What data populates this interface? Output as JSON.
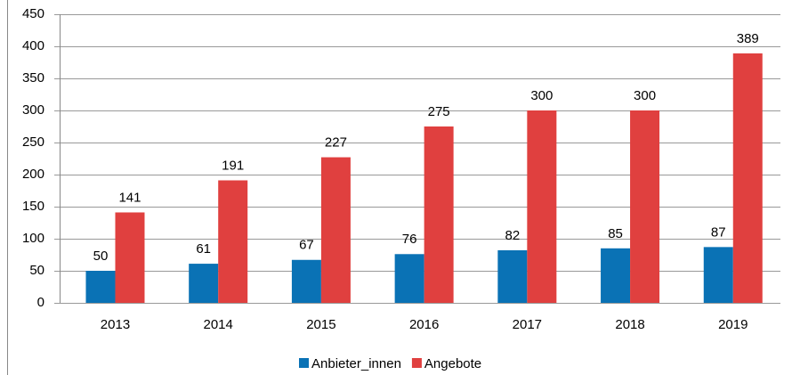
{
  "chart_data": {
    "type": "bar",
    "categories": [
      "2013",
      "2014",
      "2015",
      "2016",
      "2017",
      "2018",
      "2019"
    ],
    "series": [
      {
        "name": "Anbieter_innen",
        "color": "#0a72b5",
        "values": [
          50,
          61,
          67,
          76,
          82,
          85,
          87
        ]
      },
      {
        "name": "Angebote",
        "color": "#e0403f",
        "values": [
          141,
          191,
          227,
          275,
          300,
          300,
          389
        ]
      }
    ],
    "ylim": [
      0,
      450
    ],
    "yticks": [
      0,
      50,
      100,
      150,
      200,
      250,
      300,
      350,
      400,
      450
    ],
    "grid": true,
    "legend": "bottom"
  }
}
